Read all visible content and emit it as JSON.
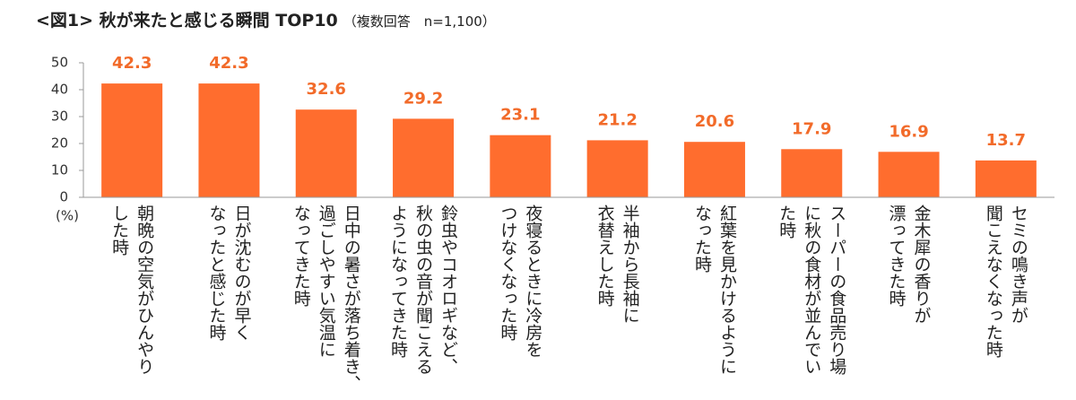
{
  "chart_data": {
    "type": "bar",
    "title": "<図1> 秋が来たと感じる瞬間 TOP10",
    "subtitle": "（複数回答　n=1,100）",
    "y_label": "(%)",
    "categories": [
      "朝晩の空気がひんやり\nした時",
      "日が沈むのが早く\nなったと感じた時",
      "日中の暑さが落ち着き、\n過ごしやすい気温に\nなってきた時",
      "鈴虫やコオロギなど、\n秋の虫の音が聞こえる\nようになってきた時",
      "夜寝るときに冷房を\nつけなくなった時",
      "半袖から長袖に\n衣替えした時",
      "紅葉を見かけるように\nなった時",
      "スーパーの食品売り場\nに秋の食材が並んでい\nた時",
      "金木犀の香りが\n漂ってきた時",
      "セミの鳴き声が\n聞こえなくなった時"
    ],
    "values": [
      42.3,
      42.3,
      32.6,
      29.2,
      23.1,
      21.2,
      20.6,
      17.9,
      16.9,
      13.7
    ],
    "color": "#ff6d2e",
    "label_color": "#f26b2a",
    "ylim": [
      0,
      50
    ],
    "yticks": [
      0,
      10,
      20,
      30,
      40,
      50
    ],
    "grid": false
  }
}
